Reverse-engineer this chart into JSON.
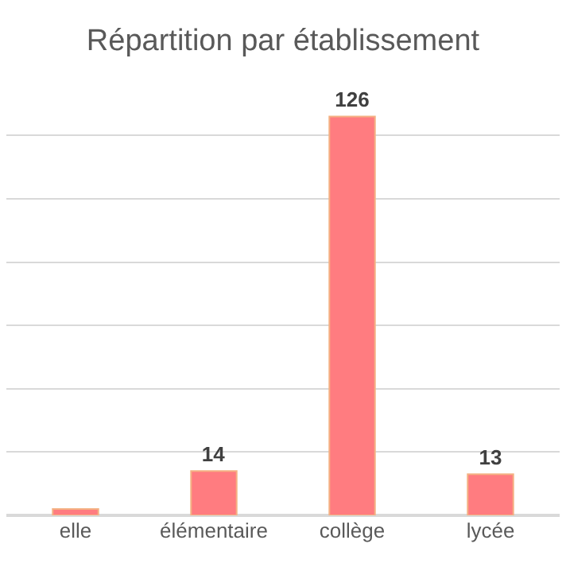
{
  "chart_data": {
    "type": "bar",
    "title": "Répartition par établissement",
    "categories": [
      "elle",
      "élémentaire",
      "collège",
      "lycée"
    ],
    "values": [
      2,
      14,
      126,
      13
    ],
    "value_labels": [
      null,
      "14",
      "126",
      "13"
    ],
    "color": "#ff7c80",
    "tick_labels": "x",
    "grid": "y",
    "legend": false
  }
}
